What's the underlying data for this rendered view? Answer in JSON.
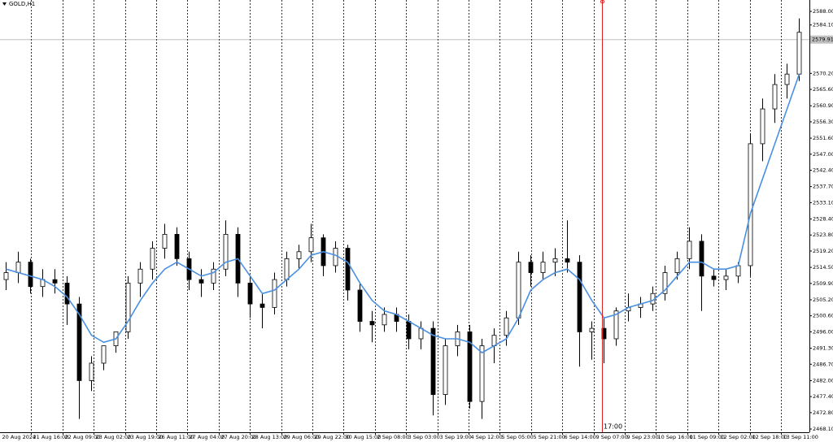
{
  "chart_data": {
    "type": "candlestick",
    "title": "GOLD,H1",
    "ylim": [
      2467.17,
      2591.27
    ],
    "yticks": [
      {
        "value": 2588,
        "label": "2588.00"
      },
      {
        "value": 2584.1,
        "label": "2584.10"
      },
      {
        "value": 2570.2,
        "label": "2570.20"
      },
      {
        "value": 2565.6,
        "label": "2565.60"
      },
      {
        "value": 2560.9,
        "label": "2560.90"
      },
      {
        "value": 2556.3,
        "label": "2556.30"
      },
      {
        "value": 2551.6,
        "label": "2551.60"
      },
      {
        "value": 2547,
        "label": "2547.00"
      },
      {
        "value": 2542.4,
        "label": "2542.40"
      },
      {
        "value": 2537.7,
        "label": "2537.70"
      },
      {
        "value": 2533.1,
        "label": "2533.10"
      },
      {
        "value": 2528.4,
        "label": "2528.40"
      },
      {
        "value": 2523.8,
        "label": "2523.80"
      },
      {
        "value": 2519.2,
        "label": "2519.20"
      },
      {
        "value": 2514.5,
        "label": "2514.50"
      },
      {
        "value": 2509.9,
        "label": "2509.90"
      },
      {
        "value": 2505.2,
        "label": "2505.20"
      },
      {
        "value": 2500.6,
        "label": "2500.60"
      },
      {
        "value": 2496,
        "label": "2496.00"
      },
      {
        "value": 2491.3,
        "label": "2491.30"
      },
      {
        "value": 2486.7,
        "label": "2486.70"
      },
      {
        "value": 2482,
        "label": "2482.00"
      },
      {
        "value": 2477.4,
        "label": "2477.40"
      },
      {
        "value": 2472.8,
        "label": "2472.80"
      },
      {
        "value": 2468.1,
        "label": "2468.10"
      }
    ],
    "x_labels": [
      "20 Aug 2024",
      "21 Aug 16:00",
      "22 Aug 09:00",
      "23 Aug 02:00",
      "23 Aug 19:00",
      "26 Aug 11:00",
      "27 Aug 04:00",
      "27 Aug 20:00",
      "28 Aug 13:00",
      "29 Aug 06:00",
      "29 Aug 22:00",
      "30 Aug 15:00",
      "2 Sep 08:00",
      "3 Sep 03:00",
      "3 Sep 19:00",
      "4 Sep 12:00",
      "5 Sep 05:00",
      "5 Sep 21:00",
      "6 Sep 14:00",
      "9 Sep 07:00",
      "9 Sep 23:00",
      "10 Sep 16:00",
      "11 Sep 09:00",
      "12 Sep 02:00",
      "12 Sep 18:00",
      "13 Sep 11:00"
    ],
    "current_price": 2579.91,
    "cursor_label": "17:00",
    "candle_color": "#000000",
    "ma_color": "#4a90e2",
    "open": [
      2511,
      2513,
      2516,
      2509,
      2511,
      2510,
      2504,
      2482,
      2487,
      2492,
      2496,
      2510,
      2514,
      2520,
      2524,
      2517,
      2511,
      2510,
      2514,
      2524,
      2510,
      2504,
      2503,
      2511,
      2517,
      2519,
      2523,
      2515,
      2520,
      2508,
      2499,
      2498,
      2501,
      2499,
      2494,
      2497,
      2478,
      2492,
      2496,
      2476,
      2492,
      2495,
      2500,
      2516,
      2513,
      2516,
      2517,
      2516,
      2496,
      2497,
      2494,
      2502,
      2503,
      2504,
      2507,
      2513,
      2517,
      2522,
      2512,
      2511,
      2512,
      2515,
      2550,
      2560,
      2567,
      2570
    ],
    "high": [
      2516,
      2519,
      2517,
      2514,
      2514,
      2512,
      2506,
      2489,
      2492,
      2496,
      2512,
      2516,
      2522,
      2527,
      2526,
      2519,
      2514,
      2516,
      2528,
      2526,
      2512,
      2507,
      2513,
      2519,
      2521,
      2527,
      2524,
      2522,
      2521,
      2510,
      2502,
      2503,
      2503,
      2501,
      2499,
      2499,
      2494,
      2498,
      2498,
      2494,
      2497,
      2502,
      2519,
      2518,
      2519,
      2520,
      2528,
      2518,
      2499,
      2500,
      2503,
      2507,
      2506,
      2509,
      2515,
      2519,
      2526,
      2524,
      2514,
      2514,
      2516,
      2553,
      2563,
      2570,
      2573,
      2586
    ],
    "low": [
      2508,
      2510,
      2507,
      2506,
      2507,
      2498,
      2471,
      2479,
      2485,
      2490,
      2494,
      2506,
      2511,
      2517,
      2515,
      2508,
      2506,
      2508,
      2512,
      2506,
      2500,
      2497,
      2501,
      2509,
      2514,
      2516,
      2512,
      2513,
      2505,
      2496,
      2493,
      2496,
      2496,
      2491,
      2491,
      2472,
      2475,
      2489,
      2474,
      2471,
      2487,
      2492,
      2498,
      2509,
      2511,
      2512,
      2513,
      2486,
      2488,
      2487,
      2492,
      2499,
      2500,
      2502,
      2505,
      2511,
      2514,
      2502,
      2509,
      2508,
      2510,
      2512,
      2545,
      2556,
      2563,
      2568
    ],
    "close": [
      2513,
      2516,
      2509,
      2511,
      2510,
      2504,
      2482,
      2487,
      2492,
      2496,
      2510,
      2514,
      2520,
      2524,
      2517,
      2511,
      2510,
      2514,
      2524,
      2510,
      2504,
      2503,
      2511,
      2517,
      2519,
      2523,
      2515,
      2520,
      2508,
      2499,
      2498,
      2501,
      2499,
      2494,
      2497,
      2478,
      2492,
      2496,
      2476,
      2492,
      2495,
      2500,
      2516,
      2513,
      2516,
      2517,
      2516,
      2496,
      2497,
      2494,
      2502,
      2503,
      2504,
      2507,
      2513,
      2517,
      2522,
      2512,
      2511,
      2512,
      2515,
      2550,
      2560,
      2567,
      2570,
      2582
    ],
    "ma": [
      2514,
      2513,
      2512,
      2511,
      2509,
      2506,
      2501,
      2495,
      2493,
      2494,
      2499,
      2505,
      2510,
      2514,
      2516,
      2514,
      2512,
      2513,
      2516,
      2517,
      2512,
      2507,
      2508,
      2511,
      2514,
      2518,
      2519,
      2518,
      2516,
      2510,
      2505,
      2502,
      2501,
      2499,
      2497,
      2495,
      2494,
      2494,
      2493,
      2490,
      2492,
      2494,
      2500,
      2508,
      2511,
      2513,
      2514,
      2511,
      2505,
      2500,
      2501,
      2503,
      2504,
      2505,
      2508,
      2512,
      2516,
      2516,
      2514,
      2514,
      2515,
      2530,
      2540,
      2550,
      2560,
      2570
    ]
  }
}
